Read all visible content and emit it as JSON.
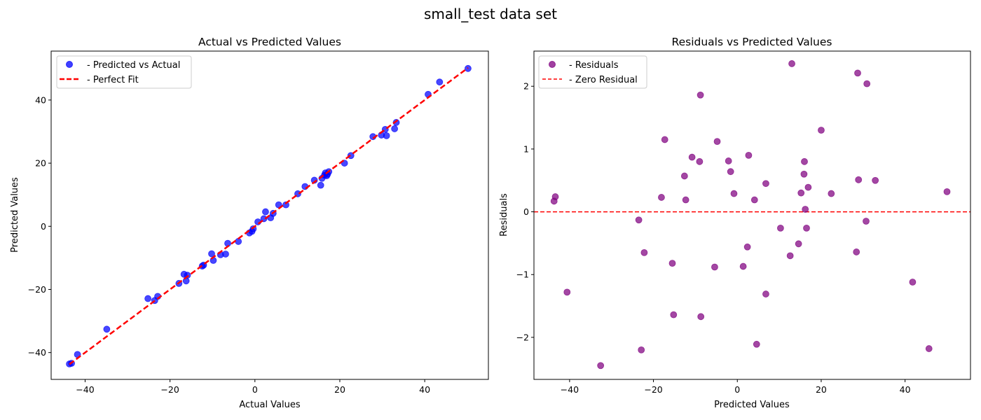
{
  "figure": {
    "title": "small_test data set"
  },
  "chart_data": [
    {
      "type": "scatter",
      "title": "Actual vs Predicted Values",
      "xlabel": "Actual Values",
      "ylabel": "Predicted Values",
      "xlim": [
        -48,
        55
      ],
      "ylim": [
        -48.5,
        55.5
      ],
      "xticks": [
        -40,
        -20,
        0,
        20,
        40
      ],
      "yticks": [
        -40,
        -20,
        0,
        20,
        40
      ],
      "tick_labels_x": [
        "−40",
        "−20",
        "0",
        "20",
        "40"
      ],
      "tick_labels_y": [
        "−40",
        "−20",
        "0",
        "20",
        "40"
      ],
      "grid": false,
      "legend": "top-left",
      "series": [
        {
          "name": "- Predicted vs Actual",
          "kind": "scatter",
          "color": "#0000ff",
          "points": [
            [
              -43.7,
              -43.6
            ],
            [
              -43.2,
              -43.4
            ],
            [
              -41.8,
              -40.6
            ],
            [
              -34.9,
              -32.6
            ],
            [
              -25.2,
              -22.9
            ],
            [
              -23.6,
              -23.5
            ],
            [
              -22.9,
              -22.2
            ],
            [
              -17.9,
              -18.1
            ],
            [
              -16.7,
              -15.2
            ],
            [
              -16.2,
              -17.3
            ],
            [
              -15.9,
              -15.5
            ],
            [
              -12.4,
              -12.6
            ],
            [
              -12.1,
              -12.3
            ],
            [
              -10.2,
              -8.7
            ],
            [
              -9.8,
              -10.8
            ],
            [
              -8.1,
              -9.0
            ],
            [
              -6.9,
              -8.8
            ],
            [
              -6.4,
              -5.4
            ],
            [
              -3.9,
              -4.8
            ],
            [
              -1.3,
              -2.1
            ],
            [
              -0.7,
              -1.6
            ],
            [
              -0.4,
              -0.8
            ],
            [
              0.7,
              1.4
            ],
            [
              2.1,
              2.4
            ],
            [
              2.5,
              4.6
            ],
            [
              3.7,
              2.7
            ],
            [
              4.3,
              4.1
            ],
            [
              5.6,
              6.8
            ],
            [
              7.3,
              6.8
            ],
            [
              10.1,
              10.3
            ],
            [
              11.8,
              12.6
            ],
            [
              14.0,
              14.6
            ],
            [
              15.5,
              13.0
            ],
            [
              15.8,
              15.2
            ],
            [
              16.4,
              16.2
            ],
            [
              16.6,
              16.9
            ],
            [
              16.9,
              16.0
            ],
            [
              17.1,
              16.5
            ],
            [
              17.4,
              17.3
            ],
            [
              21.1,
              20.0
            ],
            [
              22.6,
              22.4
            ],
            [
              27.8,
              28.4
            ],
            [
              29.8,
              28.9
            ],
            [
              30.7,
              30.7
            ],
            [
              31.0,
              28.7
            ],
            [
              32.9,
              30.9
            ],
            [
              33.3,
              32.9
            ],
            [
              40.8,
              41.8
            ],
            [
              43.5,
              45.7
            ],
            [
              50.2,
              50.0
            ]
          ]
        },
        {
          "name": "- Perfect Fit",
          "kind": "line",
          "color": "#ff0000",
          "x": [
            -43.7,
            50.2
          ],
          "y": [
            -43.7,
            50.2
          ]
        }
      ]
    },
    {
      "type": "scatter",
      "title": "Residuals vs Predicted Values",
      "xlabel": "Predicted Values",
      "ylabel": "Residuals",
      "xlim": [
        -48.5,
        55.6
      ],
      "ylim": [
        -2.67,
        2.56
      ],
      "xticks": [
        -40,
        -20,
        0,
        20,
        40
      ],
      "yticks": [
        -2,
        -1,
        0,
        1,
        2
      ],
      "tick_labels_x": [
        "−40",
        "−20",
        "0",
        "20",
        "40"
      ],
      "tick_labels_y": [
        "−2",
        "−1",
        "0",
        "1",
        "2"
      ],
      "grid": false,
      "legend": "top-left",
      "series": [
        {
          "name": "- Residuals",
          "kind": "scatter",
          "color": "#800080",
          "points": [
            [
              -43.7,
              0.17
            ],
            [
              -43.4,
              0.24
            ],
            [
              -40.6,
              -1.28
            ],
            [
              -32.6,
              -2.45
            ],
            [
              -23.5,
              -0.13
            ],
            [
              -22.9,
              -2.2
            ],
            [
              -22.2,
              -0.65
            ],
            [
              -18.1,
              0.23
            ],
            [
              -17.3,
              1.15
            ],
            [
              -15.5,
              -0.82
            ],
            [
              -15.2,
              -1.64
            ],
            [
              -12.6,
              0.57
            ],
            [
              -12.3,
              0.19
            ],
            [
              -10.8,
              0.87
            ],
            [
              -9.0,
              0.8
            ],
            [
              -8.8,
              1.86
            ],
            [
              -8.7,
              -1.67
            ],
            [
              -5.4,
              -0.88
            ],
            [
              -4.8,
              1.12
            ],
            [
              -2.1,
              0.81
            ],
            [
              -1.6,
              0.64
            ],
            [
              -0.8,
              0.29
            ],
            [
              1.4,
              -0.87
            ],
            [
              2.4,
              -0.56
            ],
            [
              2.7,
              0.9
            ],
            [
              4.1,
              0.19
            ],
            [
              4.6,
              -2.11
            ],
            [
              6.8,
              -1.31
            ],
            [
              6.8,
              0.45
            ],
            [
              10.3,
              -0.26
            ],
            [
              12.6,
              -0.7
            ],
            [
              13.0,
              2.36
            ],
            [
              14.6,
              -0.51
            ],
            [
              15.2,
              0.3
            ],
            [
              15.9,
              0.6
            ],
            [
              16.0,
              0.8
            ],
            [
              16.2,
              0.04
            ],
            [
              16.5,
              -0.26
            ],
            [
              16.9,
              0.39
            ],
            [
              20.0,
              1.3
            ],
            [
              22.4,
              0.29
            ],
            [
              28.4,
              -0.64
            ],
            [
              28.7,
              2.21
            ],
            [
              28.9,
              0.51
            ],
            [
              30.7,
              -0.15
            ],
            [
              30.9,
              2.04
            ],
            [
              32.9,
              0.5
            ],
            [
              41.8,
              -1.12
            ],
            [
              45.7,
              -2.18
            ],
            [
              50.0,
              0.32
            ]
          ]
        },
        {
          "name": "- Zero Residual",
          "kind": "hline",
          "color": "#ff0000",
          "y": 0
        }
      ]
    }
  ]
}
